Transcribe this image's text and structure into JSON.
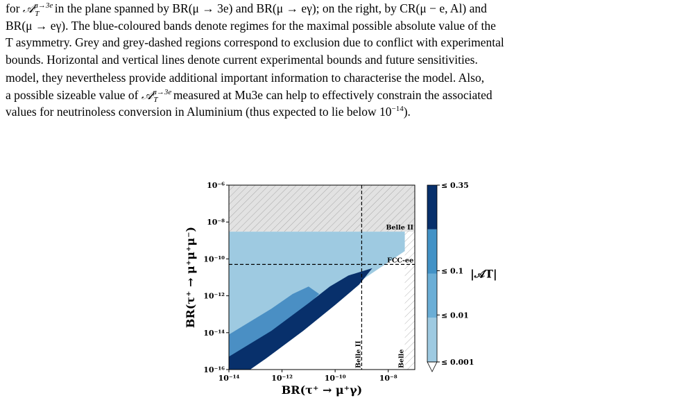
{
  "caption": {
    "line1": "for 𝒜T^{μ→3e} in the plane spanned by BR(μ → 3e) and BR(μ → eγ); on the right, by CR(μ − e, Al) and",
    "line1_prefix": "for ",
    "line1_sym": "𝒜",
    "line1_sub": "T",
    "line1_sup": "μ→3e",
    "line1_rest": " in the plane spanned by BR(μ → 3e) and BR(μ → eγ); on the right, by CR(μ − e, Al) and",
    "line2": "BR(μ → eγ). The blue-coloured bands denote regimes for the maximal possible absolute value of the",
    "line3": "T asymmetry. Grey and grey-dashed regions correspond to exclusion due to conflict with experimental",
    "line4": "bounds. Horizontal and vertical lines denote current experimental bounds and future sensitivities."
  },
  "body_text": {
    "line1": "model, they nevertheless provide additional important information to characterise the model. Also,",
    "line2_prefix": "a possible sizeable value of ",
    "line2_sym": "𝒜",
    "line2_sub": "T",
    "line2_sup": "μ→3e",
    "line2_rest": " measured at Mu3e can help to effectively constrain the associated",
    "line3_prefix": "values for neutrinoless conversion in Aluminium (thus expected to lie below 10",
    "line3_sup": "−14",
    "line3_rest": ")."
  },
  "chart_data": {
    "type": "heatmap",
    "xlabel": "BR(τ⁺ → μ⁺γ)",
    "ylabel": "BR(τ⁺ → μ⁺μ⁺μ⁻)",
    "x_scale": "log",
    "y_scale": "log",
    "xlim": [
      1e-14,
      1e-07
    ],
    "ylim": [
      1e-16,
      1e-06
    ],
    "x_ticks": [
      "10⁻¹⁴",
      "10⁻¹²",
      "10⁻¹⁰",
      "10⁻⁸"
    ],
    "y_ticks": [
      "10⁻¹⁶",
      "10⁻¹⁴",
      "10⁻¹²",
      "10⁻¹⁰",
      "10⁻⁸",
      "10⁻⁶"
    ],
    "bounds": [
      {
        "label": "Belle II",
        "axis": "y",
        "value": 3e-09
      },
      {
        "label": "FCC-ee",
        "axis": "y",
        "value": 5e-11
      },
      {
        "label": "Belle II",
        "axis": "x",
        "value": 1e-09
      },
      {
        "label": "Belle",
        "axis": "x",
        "value": 4.2e-08
      }
    ],
    "colorbar": {
      "label": "|𝒜T|",
      "levels": [
        "≤ 0.001",
        "≤ 0.01",
        "≤ 0.1",
        "≤ 0.35"
      ],
      "colors": [
        "#9ecae1",
        "#6baed6",
        "#4292c6",
        "#08306b"
      ]
    },
    "colors": {
      "light": "#9ecae1",
      "mid": "#4a8fc4",
      "dark": "#08306b",
      "excluded": "#e0e0e0"
    }
  }
}
